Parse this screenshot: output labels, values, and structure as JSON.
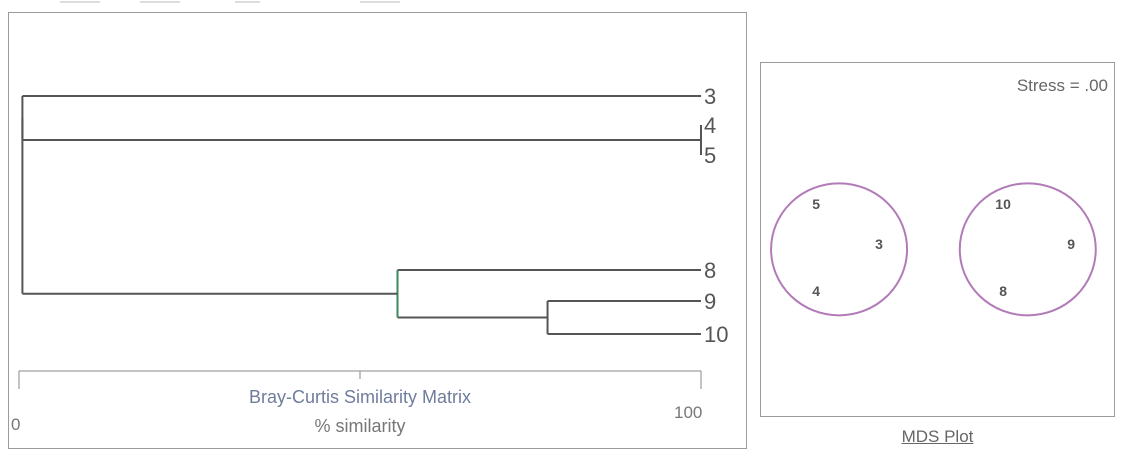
{
  "colors": {
    "branch": "#555555",
    "branch_highlight": "#3a8a5a",
    "circle": "#b27bb8",
    "axis": "#888888",
    "panel_border": "#9b9b9b"
  },
  "chart_data": [
    {
      "type": "dendrogram",
      "title": "",
      "xlabel": "Bray-Curtis Similarity Matrix",
      "xlabel_sub": "% similarity",
      "xlim": [
        0,
        100
      ],
      "tick_labels": [
        "0",
        "100"
      ],
      "leaves": [
        "3",
        "4",
        "5",
        "8",
        "9",
        "10"
      ],
      "merges": [
        {
          "left": "4",
          "right": "5",
          "similarity": 100
        },
        {
          "left": "9",
          "right": "10",
          "similarity": 77.5
        },
        {
          "left": "8",
          "right": "9+10",
          "similarity": 55.5
        },
        {
          "left": "3",
          "right": "4+5",
          "similarity": 0.5
        },
        {
          "left": "3+4+5",
          "right": "8+9+10",
          "similarity": 0.5
        }
      ]
    },
    {
      "type": "scatter",
      "title": "MDS Plot",
      "stress_label": "Stress = .00",
      "points": [
        {
          "label": "5",
          "x": -0.72,
          "y": 0.45
        },
        {
          "label": "3",
          "x": -0.35,
          "y": 0.05
        },
        {
          "label": "4",
          "x": -0.72,
          "y": -0.42
        },
        {
          "label": "10",
          "x": 0.38,
          "y": 0.45
        },
        {
          "label": "9",
          "x": 0.78,
          "y": 0.05
        },
        {
          "label": "8",
          "x": 0.38,
          "y": -0.42
        }
      ],
      "groups": [
        {
          "members": [
            "3",
            "4",
            "5"
          ]
        },
        {
          "members": [
            "8",
            "9",
            "10"
          ]
        }
      ]
    }
  ]
}
